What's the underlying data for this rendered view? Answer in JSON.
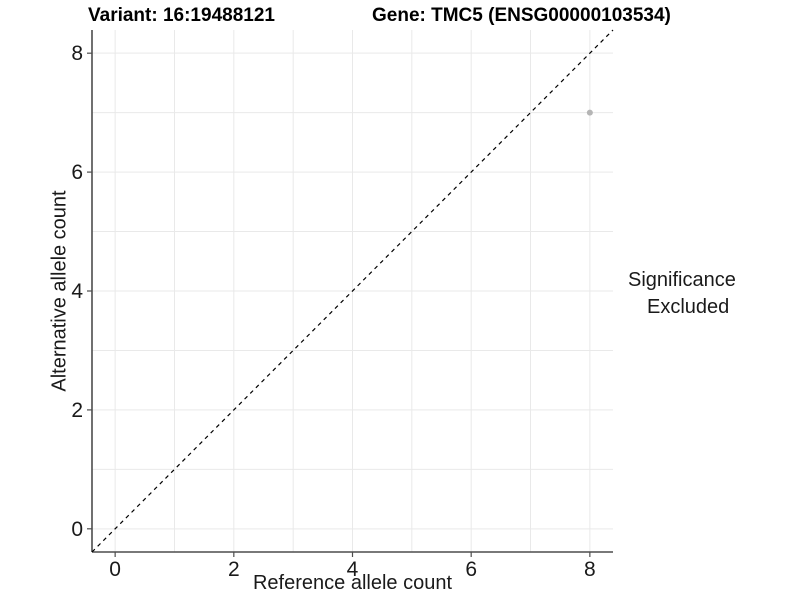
{
  "chart_data": {
    "type": "scatter",
    "title": "Variant: 16:19488121",
    "subtitle": "Gene: TMC5 (ENSG00000103534)",
    "xlabel": "Reference allele count",
    "ylabel": "Alternative allele count",
    "xlim": [
      -0.39,
      8.39
    ],
    "ylim": [
      -0.39,
      8.39
    ],
    "xticks": [
      0,
      2,
      4,
      6,
      8
    ],
    "yticks": [
      0,
      2,
      4,
      6,
      8
    ],
    "grid_x": [
      0,
      1,
      2,
      3,
      4,
      5,
      6,
      7,
      8
    ],
    "grid_y": [
      0,
      1,
      2,
      3,
      4,
      5,
      6,
      7,
      8
    ],
    "grid": true,
    "series": [
      {
        "name": "Excluded",
        "points": [
          {
            "x": 8,
            "y": 7
          }
        ],
        "color": "#b5b5b5"
      }
    ],
    "diagonal": {
      "equation": "y = x",
      "style": "dashed",
      "color": "#000000"
    },
    "legend": {
      "title": "Significance",
      "position": "right",
      "entries": [
        {
          "label": "Excluded",
          "color": "#bdbdbd",
          "marker": "circle-icon"
        }
      ]
    }
  },
  "colors": {
    "background": "#ffffff",
    "axis_line": "#4d4d4d",
    "tick_mark": "#4d4d4d",
    "gridline": "#e9e9e9",
    "text": "#1a1a1a",
    "title_text": "#000000"
  }
}
